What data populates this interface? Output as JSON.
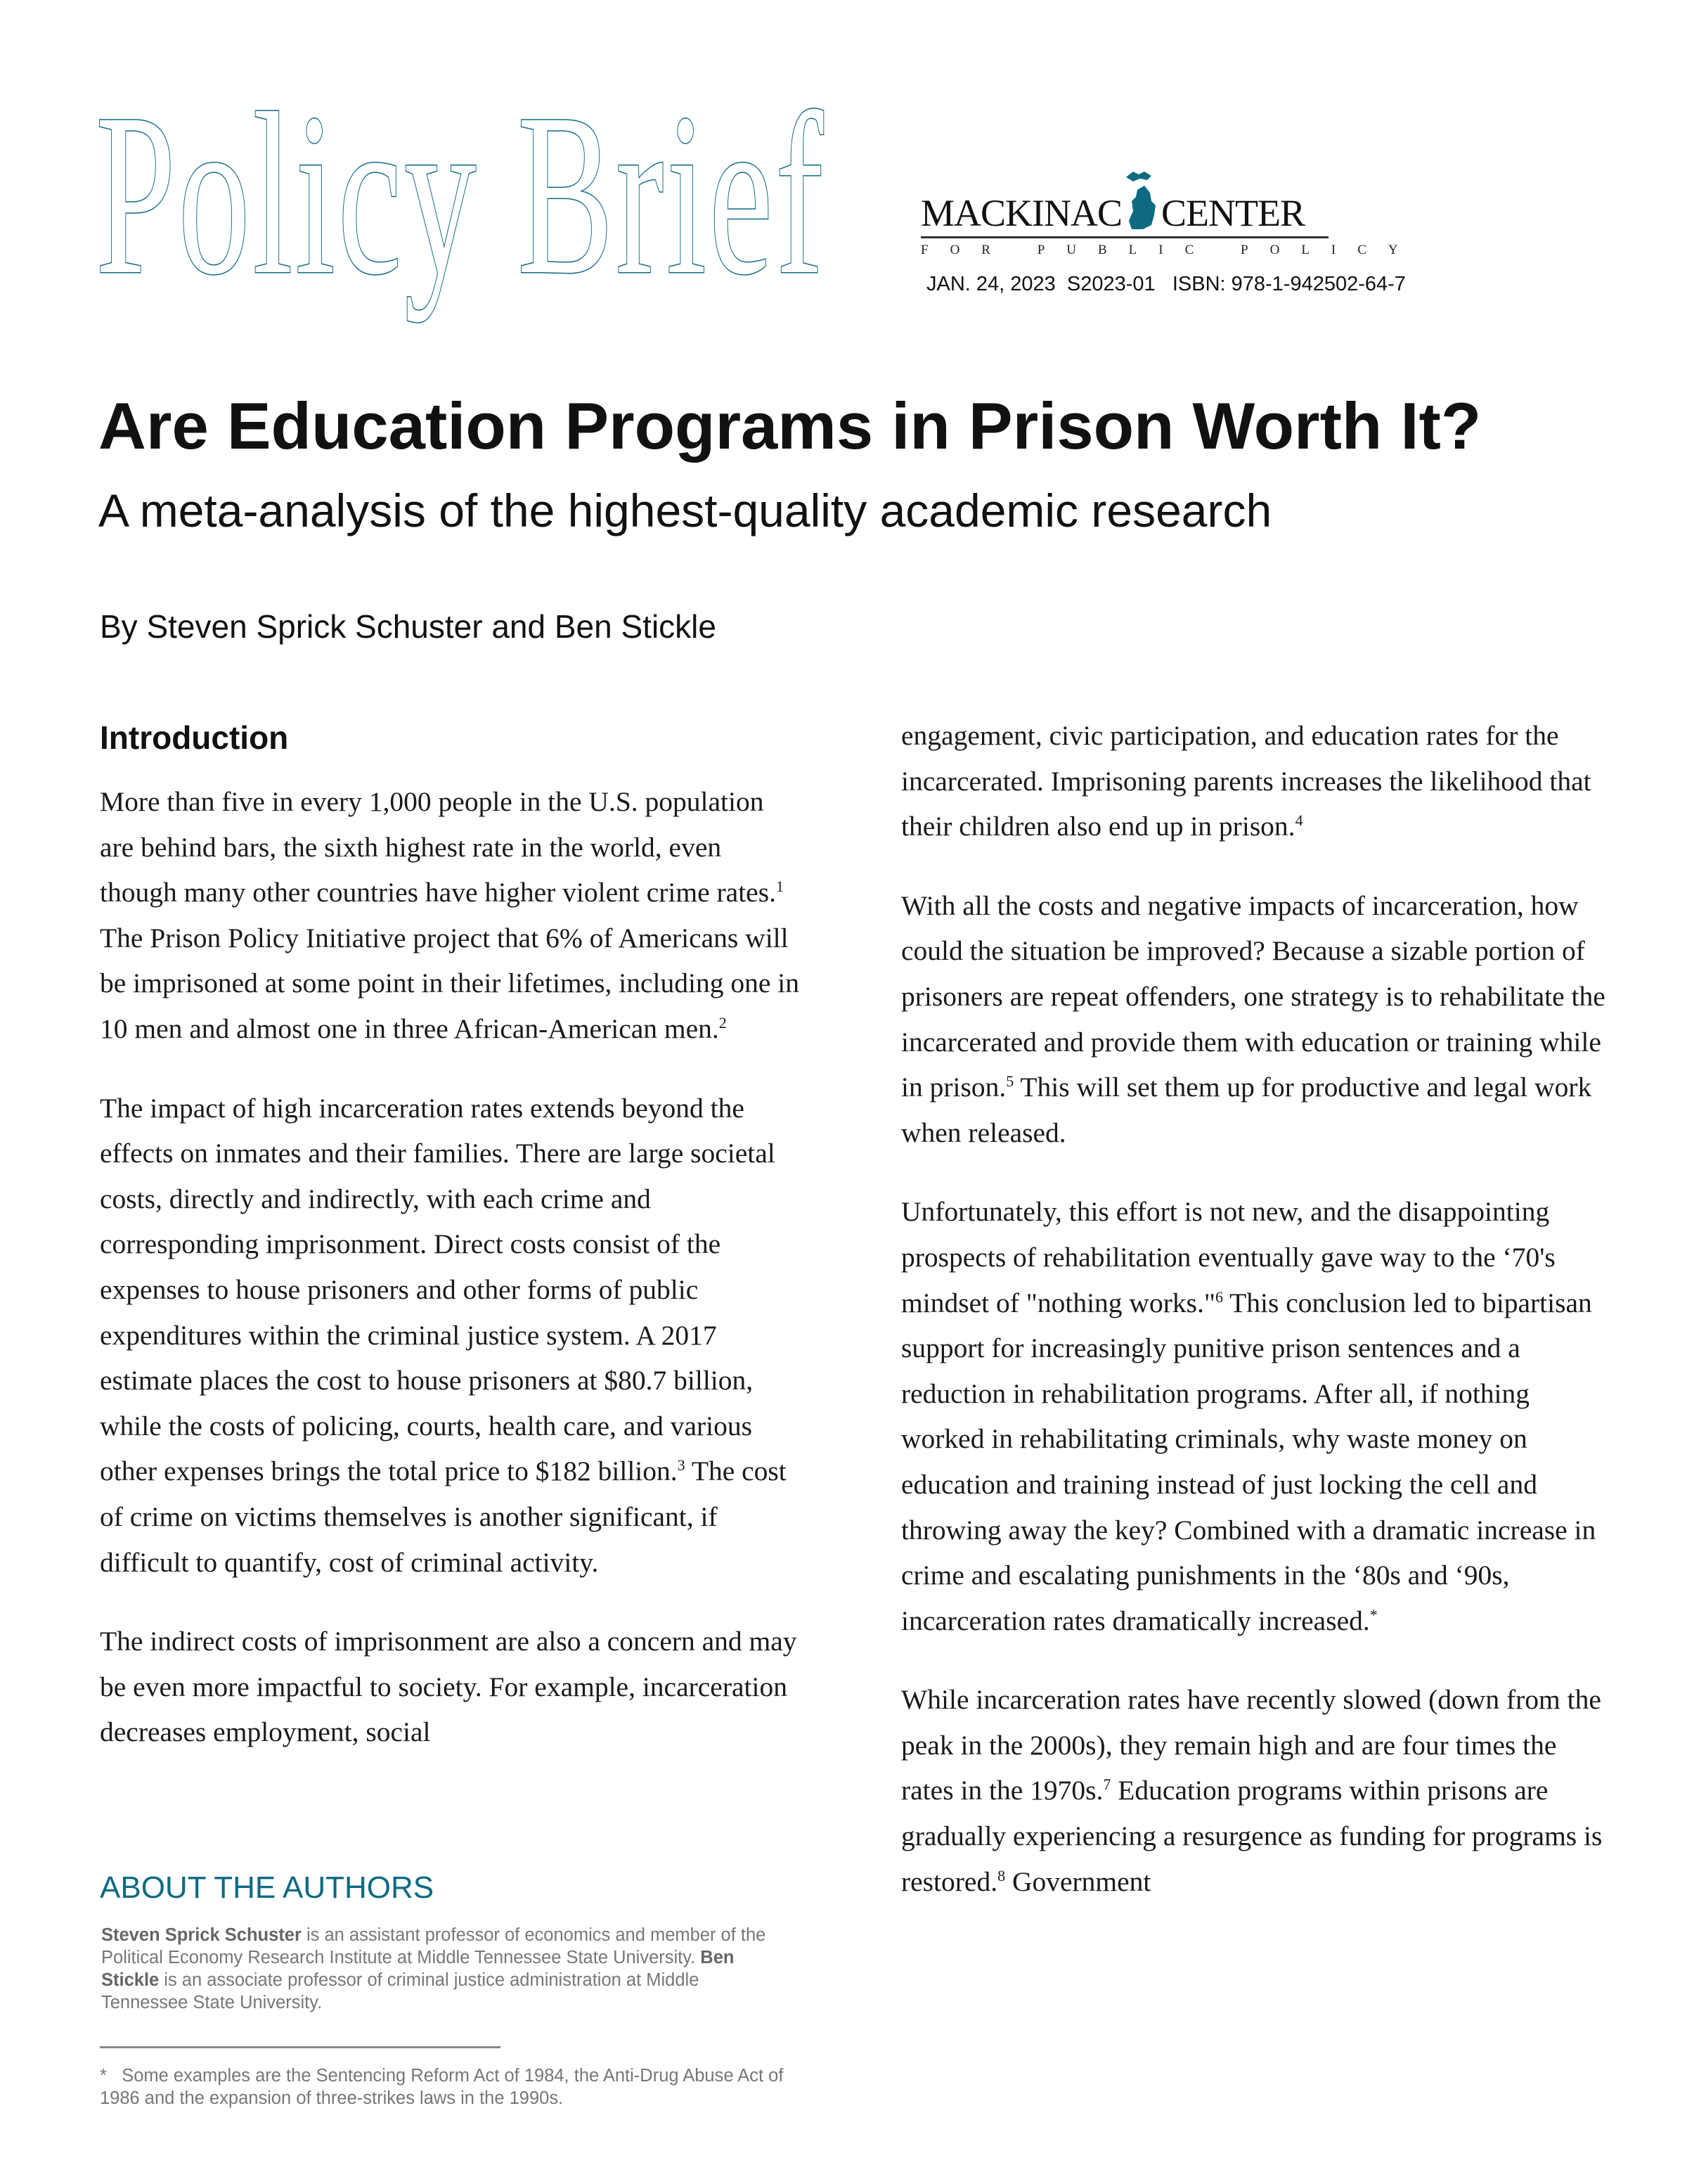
{
  "header": {
    "brand_title": "Policy Brief",
    "logo": {
      "name_left": "MACKINAC",
      "name_right": "CENTER",
      "tagline": "FOR PUBLIC POLICY",
      "brand_color": "#0d6a82",
      "icon": "michigan-map-icon"
    },
    "meta": "JAN. 24, 2023  S2023-01   ISBN: 978-1-942502-64-7"
  },
  "article": {
    "title": "Are Education Programs in Prison Worth It?",
    "subtitle": "A meta-analysis of the highest-quality academic research",
    "byline": "By Steven Sprick Schuster and Ben Stickle",
    "intro_heading": "Introduction",
    "left_paragraphs": [
      [
        {
          "t": "More than five in every 1,000 people in the U.S. population are behind bars, the sixth highest rate in the world, even though many other countries have higher violent crime rates."
        },
        {
          "sup": "1"
        },
        {
          "t": " The Prison Policy Initiative project that 6% of Americans will be imprisoned at some point in their lifetimes, including one in 10 men and almost one in three African-American men."
        },
        {
          "sup": "2"
        }
      ],
      [
        {
          "t": "The impact of high incarceration rates extends beyond the effects on inmates and their families. There are large societal costs, directly and indirectly, with each crime and corresponding imprisonment. Direct costs consist of the expenses to house prisoners and other forms of public expenditures within the criminal justice system. A 2017 estimate places the cost to house prisoners at $80.7 billion, while the costs of policing, courts, health care, and various other expenses brings the total price to $182 billion."
        },
        {
          "sup": "3"
        },
        {
          "t": " The cost of crime on victims themselves is another significant, if difficult to quantify, cost of criminal activity."
        }
      ],
      [
        {
          "t": "The indirect costs of imprisonment are also a concern and may be even more impactful to society. For example, incarceration decreases employment, social"
        }
      ]
    ],
    "right_paragraphs": [
      [
        {
          "t": "engagement, civic participation, and education rates for the incarcerated. Imprisoning parents increases the likelihood that their children also end up in prison."
        },
        {
          "sup": "4"
        }
      ],
      [
        {
          "t": "With all the costs and negative impacts of incarceration, how could the situation be improved? Because a sizable portion of prisoners are repeat offenders, one strategy is to rehabilitate the incarcerated and provide them with education or training while in prison."
        },
        {
          "sup": "5"
        },
        {
          "t": " This will set them up for productive and legal work when released."
        }
      ],
      [
        {
          "t": "Unfortunately, this effort is not new, and the disappointing prospects of rehabilitation eventually gave way to the ‘70's mindset of \"nothing works.\""
        },
        {
          "sup": "6"
        },
        {
          "t": " This conclusion led to bipartisan support for increasingly punitive prison sentences and a reduction in rehabilitation programs. After all, if nothing worked in rehabilitating criminals, why waste money on education and training instead of just locking the cell and throwing away the key? Combined with a dramatic increase in crime and escalating punishments in the ‘80s and ‘90s, incarceration rates dramatically increased."
        },
        {
          "sup": "*"
        }
      ],
      [
        {
          "t": "While incarceration rates have recently slowed (down from the peak in the 2000s), they remain high and are four times the rates in the 1970s."
        },
        {
          "sup": "7"
        },
        {
          "t": " Education programs within prisons are gradually experiencing a resurgence as funding for programs is restored."
        },
        {
          "sup": "8"
        },
        {
          "t": " Government"
        }
      ]
    ]
  },
  "about": {
    "heading": "ABOUT THE AUTHORS",
    "author1": "Steven Sprick Schuster",
    "text1": " is an assistant professor of economics and member of the Political Economy Research Institute at Middle Tennessee State University. ",
    "author2": "Ben Stickle",
    "text2": " is an associate professor of criminal justice administration at Middle Tennessee State University."
  },
  "footnote": {
    "marker": "*",
    "text": "Some examples are the Sentencing Reform Act of 1984, the Anti-Drug Abuse Act of 1986 and the expansion of three-strikes laws in the 1990s."
  }
}
